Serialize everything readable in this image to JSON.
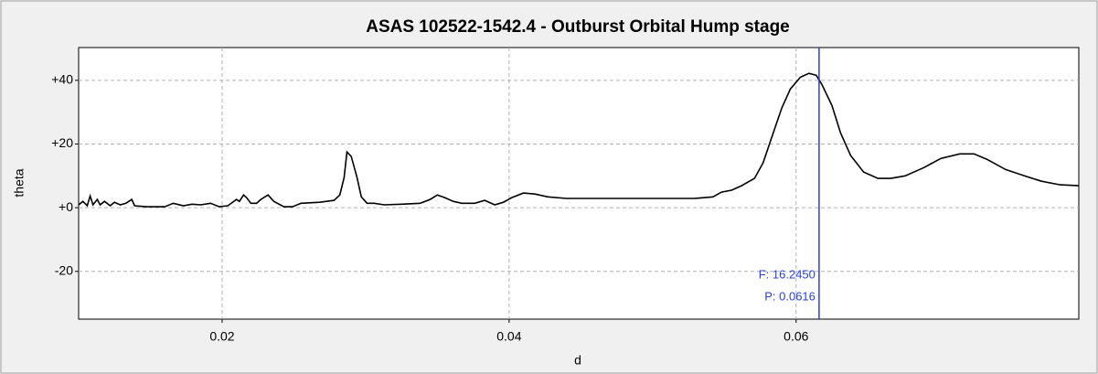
{
  "chart_data": {
    "type": "line",
    "title": "ASAS 102522-1542.4 - Outburst Orbital Hump stage",
    "xlabel": "d",
    "ylabel": "theta",
    "xlim": [
      0.01,
      0.0797
    ],
    "ylim": [
      -35,
      50.3
    ],
    "xticks": [
      0.02,
      0.04,
      0.06
    ],
    "yticks": [
      {
        "value": -20,
        "label": "-20"
      },
      {
        "value": 0,
        "label": "+0"
      },
      {
        "value": 20,
        "label": "+20"
      },
      {
        "value": 40,
        "label": "+40"
      }
    ],
    "grid": true,
    "x": [
      0.01,
      0.0103,
      0.0106,
      0.0108,
      0.011,
      0.0113,
      0.0115,
      0.0118,
      0.0122,
      0.0125,
      0.0129,
      0.0133,
      0.0137,
      0.0139,
      0.0147,
      0.016,
      0.0166,
      0.0173,
      0.0179,
      0.0185,
      0.0192,
      0.0198,
      0.0204,
      0.021,
      0.0212,
      0.0215,
      0.0217,
      0.022,
      0.0224,
      0.0227,
      0.0232,
      0.0236,
      0.0243,
      0.0249,
      0.0255,
      0.0268,
      0.0278,
      0.0282,
      0.0285,
      0.0287,
      0.029,
      0.0294,
      0.0297,
      0.0301,
      0.0306,
      0.0313,
      0.0325,
      0.0338,
      0.0345,
      0.035,
      0.0355,
      0.0361,
      0.0367,
      0.0376,
      0.0383,
      0.039,
      0.0396,
      0.0402,
      0.041,
      0.0418,
      0.0427,
      0.044,
      0.0491,
      0.0529,
      0.0542,
      0.0548,
      0.0555,
      0.0562,
      0.0571,
      0.0577,
      0.0583,
      0.059,
      0.0596,
      0.0603,
      0.0609,
      0.0614,
      0.0618,
      0.0625,
      0.0631,
      0.0638,
      0.0647,
      0.0657,
      0.0666,
      0.0676,
      0.0689,
      0.0701,
      0.0714,
      0.0724,
      0.0733,
      0.0746,
      0.0759,
      0.0771,
      0.0784,
      0.0797
    ],
    "series": [
      {
        "color": "#000000",
        "values": [
          0.9,
          2.0,
          0.6,
          3.7,
          0.9,
          2.6,
          0.9,
          2.0,
          0.6,
          1.7,
          0.9,
          1.4,
          2.6,
          0.6,
          0.3,
          0.3,
          1.4,
          0.6,
          1.1,
          0.9,
          1.4,
          0.3,
          0.6,
          2.6,
          2.0,
          4.0,
          3.2,
          1.4,
          1.4,
          2.6,
          4.0,
          2.0,
          0.3,
          0.3,
          1.4,
          1.7,
          2.3,
          4.0,
          9.5,
          17.5,
          16.1,
          9.5,
          3.4,
          1.4,
          1.4,
          0.9,
          1.1,
          1.4,
          2.6,
          4.0,
          3.2,
          2.0,
          1.4,
          1.4,
          2.3,
          0.9,
          1.7,
          3.2,
          4.6,
          4.3,
          3.4,
          2.9,
          2.9,
          2.9,
          3.4,
          4.9,
          5.5,
          6.9,
          9.2,
          14.1,
          22.1,
          31.3,
          37.3,
          41.0,
          42.2,
          41.6,
          38.7,
          32.1,
          23.5,
          16.4,
          11.2,
          9.2,
          9.2,
          10.0,
          12.6,
          15.5,
          16.9,
          16.9,
          15.2,
          12.0,
          10.0,
          8.3,
          7.2,
          6.9
        ]
      }
    ],
    "cursor": {
      "x": 0.0616,
      "color": "#2b3fdc",
      "labels": [
        "F: 16.2450",
        "P: 0.0616"
      ]
    }
  }
}
